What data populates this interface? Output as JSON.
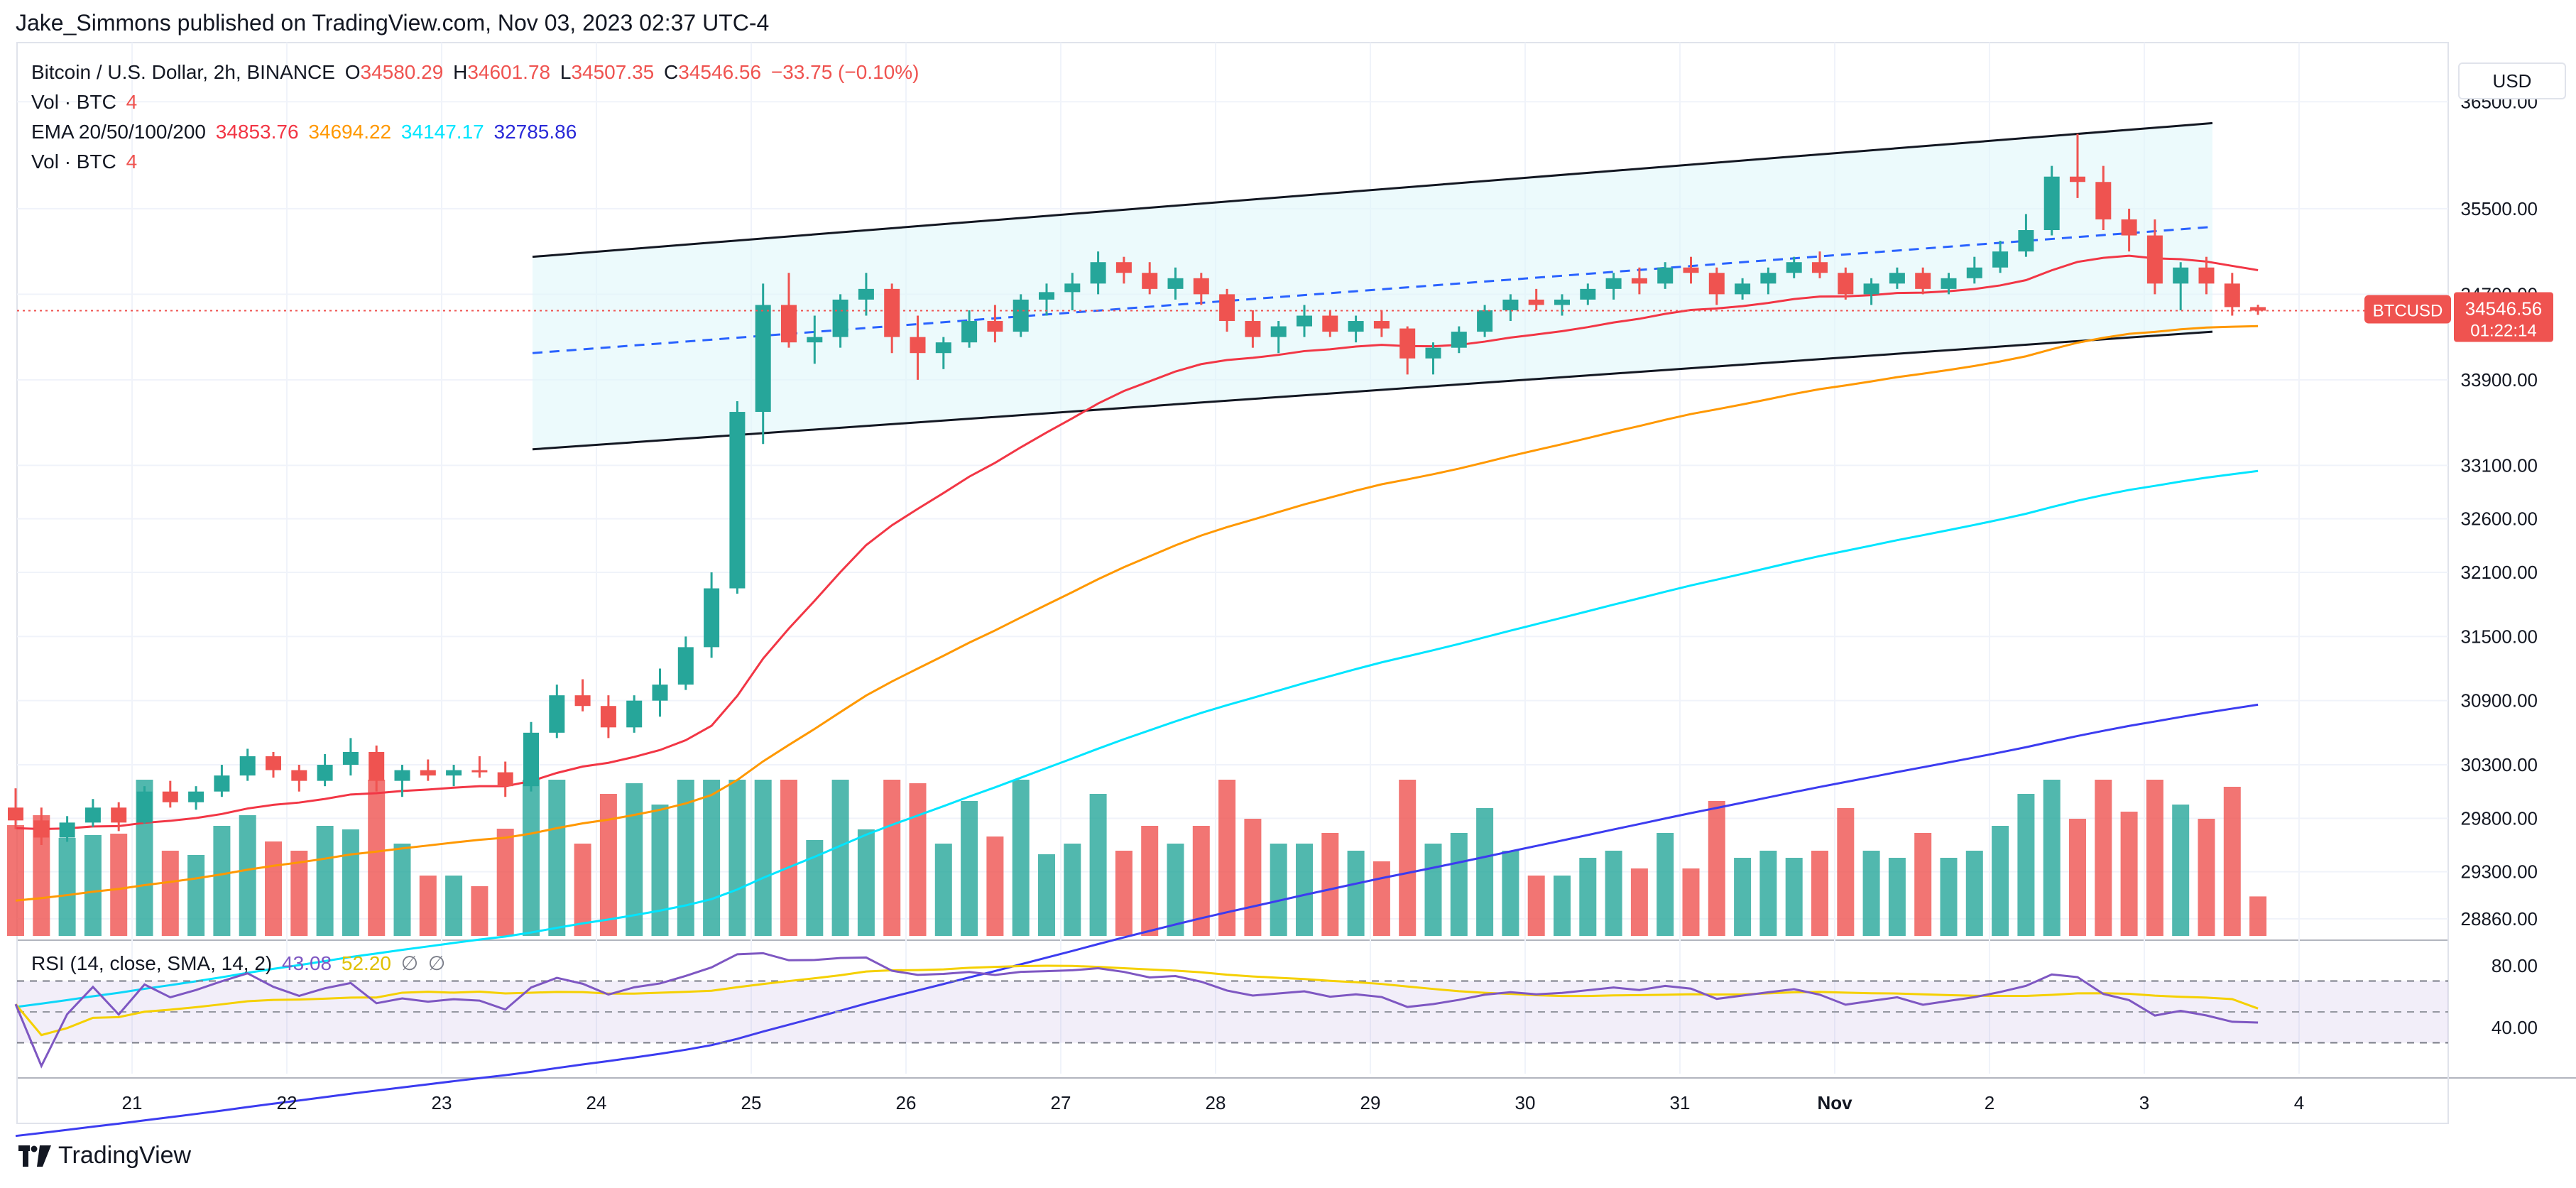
{
  "header": {
    "publisher": "Jake_Simmons published on TradingView.com, Nov 03, 2023 02:37 UTC-4"
  },
  "legend": {
    "symbol": "Bitcoin / U.S. Dollar, 2h, BINANCE",
    "o_label": "O",
    "o_value": "34580.29",
    "h_label": "H",
    "h_value": "34601.78",
    "l_label": "L",
    "l_value": "34507.35",
    "c_label": "C",
    "c_value": "34546.56",
    "change": "−33.75 (−0.10%)",
    "vol1_label": "Vol · BTC",
    "vol1_value": "4",
    "ema_label": "EMA 20/50/100/200",
    "ema_values": [
      "34853.76",
      "34694.22",
      "34147.17",
      "32785.86"
    ],
    "vol2_label": "Vol · BTC",
    "vol2_value": "4"
  },
  "rsi_legend": {
    "label": "RSI (14, close, SMA, 14, 2)",
    "rsi_value": "43.08",
    "sma_value": "52.20",
    "slash1": "∅",
    "slash2": "∅"
  },
  "price_axis": {
    "currency": "USD",
    "ticks": [
      "36500.00",
      "35500.00",
      "34700.00",
      "33900.00",
      "33100.00",
      "32600.00",
      "32100.00",
      "31500.00",
      "30900.00",
      "30300.00",
      "29800.00",
      "29300.00",
      "28860.00"
    ],
    "last_label": "BTCUSD",
    "last_price": "34546.56",
    "countdown": "01:22:14"
  },
  "rsi_axis": {
    "ticks": [
      "80.00",
      "40.00"
    ]
  },
  "time_axis": {
    "ticks": [
      "21",
      "22",
      "23",
      "24",
      "25",
      "26",
      "27",
      "28",
      "29",
      "30",
      "31",
      "Nov",
      "2",
      "3",
      "4"
    ]
  },
  "colors": {
    "up": "#26a69a",
    "down": "#ef5350",
    "ema20": "#f23645",
    "ema50": "#ff9800",
    "ema100": "#00e5ff",
    "ema200": "#3c3cf0",
    "rsi": "#7e57c2",
    "rsi_sma": "#ffeb3b",
    "channel_fill": "#e0f7fa"
  },
  "footer": {
    "brand": "TradingView"
  },
  "chart_data": {
    "type": "candlestick",
    "timeframe": "2h",
    "candles_ohlc": [
      [
        29900,
        30080,
        29700,
        29780
      ],
      [
        29780,
        29900,
        29550,
        29620
      ],
      [
        29620,
        29820,
        29580,
        29760
      ],
      [
        29760,
        29980,
        29720,
        29900
      ],
      [
        29900,
        29950,
        29680,
        29760
      ],
      [
        29760,
        30100,
        29750,
        30050
      ],
      [
        30050,
        30150,
        29900,
        29950
      ],
      [
        29950,
        30100,
        29880,
        30050
      ],
      [
        30050,
        30300,
        30000,
        30200
      ],
      [
        30200,
        30450,
        30150,
        30380
      ],
      [
        30380,
        30420,
        30180,
        30250
      ],
      [
        30250,
        30300,
        30050,
        30150
      ],
      [
        30150,
        30400,
        30100,
        30300
      ],
      [
        30300,
        30550,
        30200,
        30420
      ],
      [
        30420,
        30480,
        30050,
        30150
      ],
      [
        30150,
        30300,
        30000,
        30250
      ],
      [
        30250,
        30350,
        30150,
        30200
      ],
      [
        30200,
        30300,
        30100,
        30250
      ],
      [
        30250,
        30380,
        30180,
        30230
      ],
      [
        30230,
        30330,
        30000,
        30100
      ],
      [
        30100,
        30700,
        30050,
        30600
      ],
      [
        30600,
        31050,
        30550,
        30950
      ],
      [
        30950,
        31100,
        30800,
        30850
      ],
      [
        30850,
        30950,
        30550,
        30650
      ],
      [
        30650,
        30950,
        30600,
        30900
      ],
      [
        30900,
        31200,
        30750,
        31050
      ],
      [
        31050,
        31500,
        31000,
        31400
      ],
      [
        31400,
        32100,
        31300,
        31950
      ],
      [
        31950,
        33700,
        31900,
        33600
      ],
      [
        33600,
        34800,
        33300,
        34600
      ],
      [
        34600,
        34900,
        34200,
        34250
      ],
      [
        34250,
        34500,
        34050,
        34300
      ],
      [
        34300,
        34700,
        34200,
        34650
      ],
      [
        34650,
        34900,
        34500,
        34750
      ],
      [
        34750,
        34800,
        34150,
        34300
      ],
      [
        34300,
        34500,
        33900,
        34150
      ],
      [
        34150,
        34300,
        34000,
        34250
      ],
      [
        34250,
        34550,
        34200,
        34450
      ],
      [
        34450,
        34600,
        34250,
        34350
      ],
      [
        34350,
        34700,
        34300,
        34650
      ],
      [
        34650,
        34800,
        34500,
        34720
      ],
      [
        34720,
        34900,
        34550,
        34800
      ],
      [
        34800,
        35100,
        34700,
        35000
      ],
      [
        35000,
        35050,
        34800,
        34900
      ],
      [
        34900,
        35000,
        34700,
        34750
      ],
      [
        34750,
        34950,
        34650,
        34850
      ],
      [
        34850,
        34900,
        34600,
        34700
      ],
      [
        34700,
        34750,
        34350,
        34450
      ],
      [
        34450,
        34550,
        34200,
        34300
      ],
      [
        34300,
        34450,
        34150,
        34400
      ],
      [
        34400,
        34600,
        34300,
        34500
      ],
      [
        34500,
        34550,
        34300,
        34350
      ],
      [
        34350,
        34500,
        34250,
        34450
      ],
      [
        34450,
        34550,
        34300,
        34380
      ],
      [
        34380,
        34400,
        33950,
        34100
      ],
      [
        34100,
        34250,
        33950,
        34200
      ],
      [
        34200,
        34400,
        34150,
        34350
      ],
      [
        34350,
        34600,
        34300,
        34550
      ],
      [
        34550,
        34700,
        34450,
        34650
      ],
      [
        34650,
        34750,
        34550,
        34600
      ],
      [
        34600,
        34700,
        34500,
        34650
      ],
      [
        34650,
        34800,
        34600,
        34750
      ],
      [
        34750,
        34900,
        34650,
        34850
      ],
      [
        34850,
        34950,
        34700,
        34800
      ],
      [
        34800,
        35000,
        34750,
        34950
      ],
      [
        34950,
        35050,
        34800,
        34900
      ],
      [
        34900,
        34950,
        34600,
        34700
      ],
      [
        34700,
        34850,
        34650,
        34800
      ],
      [
        34800,
        34950,
        34700,
        34900
      ],
      [
        34900,
        35050,
        34850,
        35000
      ],
      [
        35000,
        35100,
        34850,
        34900
      ],
      [
        34900,
        34950,
        34650,
        34700
      ],
      [
        34700,
        34850,
        34600,
        34800
      ],
      [
        34800,
        34950,
        34750,
        34900
      ],
      [
        34900,
        34950,
        34700,
        34750
      ],
      [
        34750,
        34900,
        34700,
        34850
      ],
      [
        34850,
        35050,
        34800,
        34950
      ],
      [
        34950,
        35200,
        34900,
        35100
      ],
      [
        35100,
        35450,
        35050,
        35300
      ],
      [
        35300,
        35900,
        35250,
        35800
      ],
      [
        35800,
        36200,
        35600,
        35750
      ],
      [
        35750,
        35900,
        35300,
        35400
      ],
      [
        35400,
        35500,
        35100,
        35250
      ],
      [
        35250,
        35400,
        34700,
        34800
      ],
      [
        34800,
        35000,
        34550,
        34950
      ],
      [
        34950,
        35050,
        34700,
        34800
      ],
      [
        34800,
        34900,
        34500,
        34580
      ],
      [
        34580,
        34601.78,
        34507.35,
        34546.56
      ]
    ],
    "ema_series": [
      {
        "name": "EMA 20",
        "last": 34853.76
      },
      {
        "name": "EMA 50",
        "last": 34694.22
      },
      {
        "name": "EMA 100",
        "last": 34147.17
      },
      {
        "name": "EMA 200",
        "last": 32785.86
      }
    ],
    "rsi": {
      "last": 43.08,
      "sma_last": 52.2,
      "upper_band": 70,
      "lower_band": 30,
      "ylim": [
        10,
        90
      ]
    },
    "ylim": [
      28700,
      37000
    ],
    "x_ticks": [
      "21",
      "22",
      "23",
      "24",
      "25",
      "26",
      "27",
      "28",
      "29",
      "30",
      "31",
      "Nov",
      "2",
      "3",
      "4"
    ],
    "last_price": 34546.56,
    "channel": {
      "upper_start": 35050,
      "upper_end": 36300,
      "lower_start": 33250,
      "lower_end": 34350,
      "mid_start": 34150,
      "mid_end": 35330
    },
    "grid": true
  }
}
